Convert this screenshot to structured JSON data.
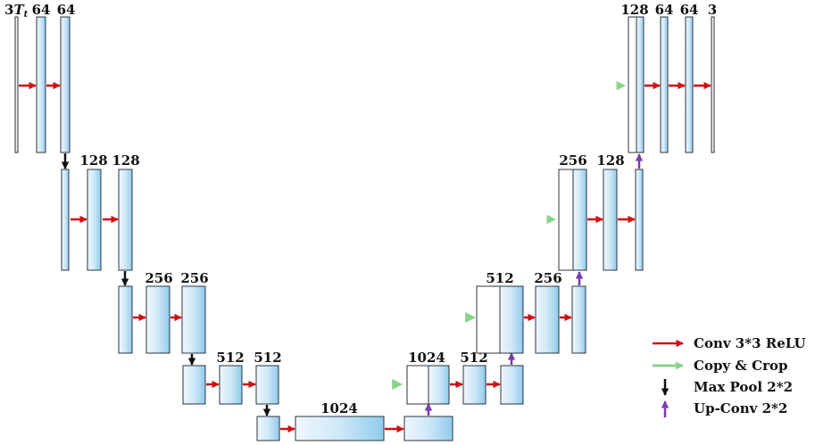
{
  "colors": {
    "blue_light": "#eef7fd",
    "blue_mid": "#cfe8f7",
    "blue_dark": "#8fcbec",
    "block_stroke": "#2b3440",
    "conv_arrow": "#cc1111",
    "copy_arrow": "#88d48a",
    "pool_arrow": "#111111",
    "upconv_arrow": "#7a3bb0"
  },
  "labels": {
    "l1_in": "3",
    "l1_in_sub": "t",
    "l1_in_var": "T",
    "l1_a": "64",
    "l1_b": "64",
    "l2_a": "128",
    "l2_b": "128",
    "l3_a": "256",
    "l3_b": "256",
    "l4_a": "512",
    "l4_b": "512",
    "bottom": "1024",
    "r4_cat": "1024",
    "r4_b": "512",
    "r3_cat": "512",
    "r3_b": "256",
    "r2_cat": "256",
    "r2_b": "128",
    "r1_cat": "128",
    "r1_a": "64",
    "r1_b": "64",
    "r1_out": "3"
  },
  "legend": [
    {
      "key": "conv",
      "label": "Conv 3*3 ReLU",
      "color": "#cc1111"
    },
    {
      "key": "copy",
      "label": "Copy & Crop",
      "color": "#88d48a"
    },
    {
      "key": "pool",
      "label": "Max Pool 2*2",
      "color": "#111111"
    },
    {
      "key": "upconv",
      "label": "Up-Conv 2*2",
      "color": "#7a3bb0"
    }
  ]
}
